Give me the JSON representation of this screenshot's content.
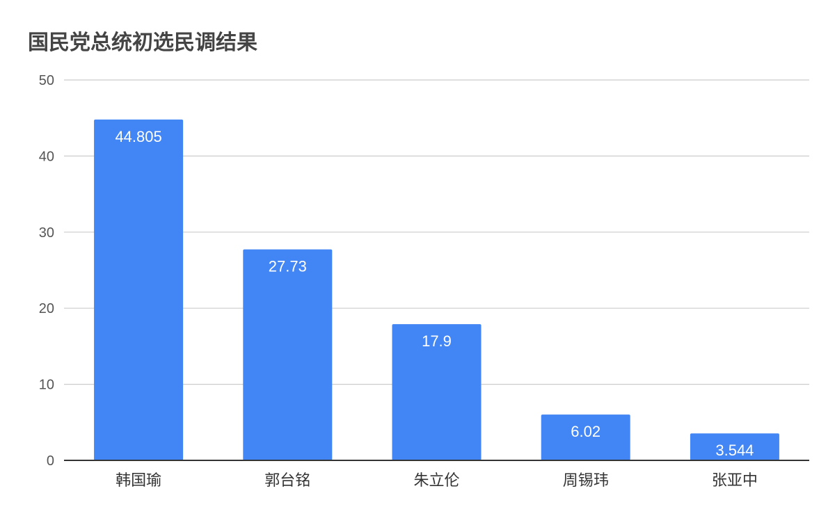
{
  "chart_data": {
    "type": "bar",
    "title": "国民党总统初选民调结果",
    "xlabel": "",
    "ylabel": "",
    "categories": [
      "韩国瑜",
      "郭台铭",
      "朱立伦",
      "周锡玮",
      "张亚中"
    ],
    "values": [
      44.805,
      27.73,
      17.9,
      6.02,
      3.544
    ],
    "data_labels": [
      "44.805",
      "27.73",
      "17.9",
      "6.02",
      "3.544"
    ],
    "ylim": [
      0,
      50
    ],
    "yticks": [
      0,
      10,
      20,
      30,
      40,
      50
    ],
    "grid": true,
    "legend": "none",
    "colors": {
      "bar": "#4285f4",
      "grid": "#cccccc",
      "axis": "#333333"
    }
  }
}
